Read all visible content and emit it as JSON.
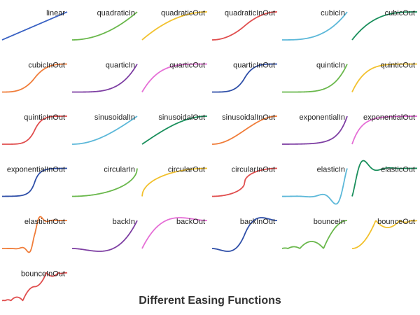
{
  "chart_data": {
    "type": "line",
    "title": "Different Easing Functions",
    "grid": false,
    "legend": "none",
    "xlim": [
      0,
      1
    ],
    "series": [
      {
        "name": "linear",
        "color": "#3b63c4"
      },
      {
        "name": "quadraticIn",
        "color": "#6ab84c"
      },
      {
        "name": "quadraticOut",
        "color": "#f2c12e"
      },
      {
        "name": "quadraticInOut",
        "color": "#e04e4e"
      },
      {
        "name": "cubicIn",
        "color": "#5cb8d9"
      },
      {
        "name": "cubicOut",
        "color": "#1a8f5c"
      },
      {
        "name": "cubicInOut",
        "color": "#f07d3a"
      },
      {
        "name": "quarticIn",
        "color": "#7e3fa3"
      },
      {
        "name": "quarticOut",
        "color": "#e56fd6"
      },
      {
        "name": "quarticInOut",
        "color": "#2f4fa8"
      },
      {
        "name": "quinticIn",
        "color": "#6ab84c"
      },
      {
        "name": "quinticOut",
        "color": "#f2c12e"
      },
      {
        "name": "quinticInOut",
        "color": "#e04e4e"
      },
      {
        "name": "sinusoidalIn",
        "color": "#5cb8d9"
      },
      {
        "name": "sinusoidalOut",
        "color": "#1a8f5c"
      },
      {
        "name": "sinusoidalInOut",
        "color": "#f07d3a"
      },
      {
        "name": "exponentialIn",
        "color": "#7e3fa3"
      },
      {
        "name": "exponentialOut",
        "color": "#e56fd6"
      },
      {
        "name": "exponentialInOut",
        "color": "#2f4fa8"
      },
      {
        "name": "circularIn",
        "color": "#6ab84c"
      },
      {
        "name": "circularOut",
        "color": "#f2c12e"
      },
      {
        "name": "circularInOut",
        "color": "#e04e4e"
      },
      {
        "name": "elasticIn",
        "color": "#5cb8d9"
      },
      {
        "name": "elasticOut",
        "color": "#1a8f5c"
      },
      {
        "name": "elasticInOut",
        "color": "#f07d3a"
      },
      {
        "name": "backIn",
        "color": "#7e3fa3"
      },
      {
        "name": "backOut",
        "color": "#e56fd6"
      },
      {
        "name": "backInOut",
        "color": "#2f4fa8"
      },
      {
        "name": "bounceIn",
        "color": "#6ab84c"
      },
      {
        "name": "bounceOut",
        "color": "#f2c12e"
      },
      {
        "name": "bounceInOut",
        "color": "#e04e4e"
      }
    ]
  }
}
